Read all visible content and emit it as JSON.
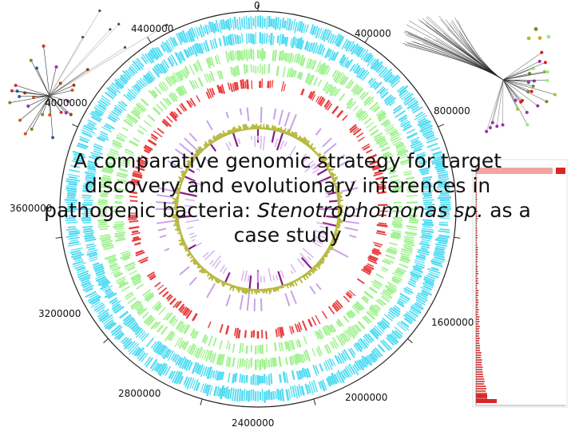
{
  "title": {
    "line1": "A comparative genomic strategy for target",
    "line2": "discovery and evolutionary inferences in",
    "line3_a": "pathogenic bacteria: ",
    "line3_it": "Stenotrophomonas sp.",
    "line3_b": " as a",
    "line4": "case study"
  },
  "genome_map": {
    "coordinate_labels": [
      "0",
      "400000",
      "800000",
      "1600000",
      "2000000",
      "2400000",
      "2800000",
      "3200000",
      "3600000",
      "4000000",
      "4400000"
    ],
    "ring_colors": {
      "cds_outer": "#33d6f0",
      "cds_inner": "#8ef07a",
      "rna": "#e41a1c",
      "gc_skew": "#c9a2e8",
      "gc_content": "#b5b83a",
      "gc_high": "#8a1a8a"
    }
  },
  "side_panels": {
    "left_tree_color": "#333333",
    "right_tree_color": "#222222",
    "histogram_color": "#d62728"
  }
}
